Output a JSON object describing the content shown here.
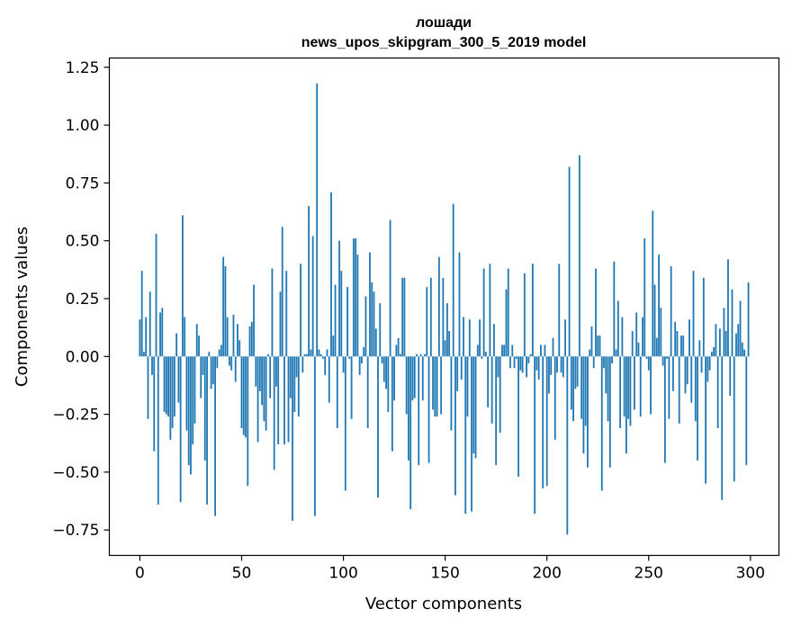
{
  "chart_data": {
    "type": "bar",
    "title": "лошади",
    "subtitle": "news_upos_skipgram_300_5_2019 model",
    "xlabel": "Vector components",
    "ylabel": "Components values",
    "xlim": [
      -15,
      314
    ],
    "ylim": [
      -0.86,
      1.29
    ],
    "xticks": [
      0,
      50,
      100,
      150,
      200,
      250,
      300
    ],
    "xtick_labels": [
      "0",
      "50",
      "100",
      "150",
      "200",
      "250",
      "300"
    ],
    "yticks": [
      -0.75,
      -0.5,
      -0.25,
      0.0,
      0.25,
      0.5,
      0.75,
      1.0,
      1.25
    ],
    "ytick_labels": [
      "−0.75",
      "−0.50",
      "−0.25",
      "0.00",
      "0.25",
      "0.50",
      "0.75",
      "1.00",
      "1.25"
    ],
    "bar_color": "#1f77b4",
    "grid": false,
    "legend": "none",
    "values": [
      0.16,
      0.37,
      0.02,
      0.17,
      -0.27,
      0.28,
      -0.08,
      -0.41,
      0.53,
      -0.64,
      0.19,
      0.21,
      -0.24,
      -0.25,
      -0.26,
      -0.36,
      -0.31,
      -0.26,
      0.1,
      -0.2,
      -0.63,
      0.61,
      0.17,
      -0.32,
      -0.47,
      -0.51,
      -0.38,
      -0.29,
      0.14,
      0.09,
      -0.18,
      -0.08,
      -0.45,
      -0.64,
      0.02,
      -0.14,
      -0.12,
      -0.69,
      -0.05,
      0.03,
      0.05,
      0.43,
      0.39,
      0.17,
      -0.04,
      -0.06,
      0.18,
      -0.11,
      0.14,
      0.07,
      -0.31,
      -0.34,
      -0.35,
      -0.56,
      0.13,
      0.15,
      0.31,
      -0.13,
      -0.37,
      -0.15,
      -0.21,
      -0.28,
      -0.32,
      0.01,
      -0.18,
      0.38,
      -0.49,
      -0.13,
      -0.38,
      0.28,
      0.56,
      -0.38,
      0.37,
      -0.37,
      -0.18,
      -0.71,
      -0.24,
      -0.09,
      -0.26,
      0.4,
      -0.07,
      0.01,
      0.01,
      0.65,
      0.03,
      0.52,
      -0.69,
      1.18,
      0.03,
      0.01,
      -0.01,
      -0.08,
      0.03,
      -0.2,
      0.71,
      0.09,
      0.31,
      -0.31,
      0.5,
      0.37,
      -0.07,
      -0.58,
      0.3,
      -0.01,
      -0.27,
      0.51,
      0.51,
      0.44,
      -0.08,
      -0.03,
      0.04,
      0.26,
      -0.31,
      0.45,
      0.32,
      0.28,
      0.12,
      -0.61,
      0.23,
      -0.03,
      -0.11,
      -0.14,
      -0.24,
      0.59,
      -0.41,
      -0.19,
      0.05,
      0.08,
      0.01,
      0.34,
      0.34,
      -0.25,
      -0.45,
      -0.66,
      -0.19,
      -0.18,
      0.01,
      -0.47,
      0.01,
      -0.19,
      0.01,
      0.3,
      -0.46,
      0.34,
      -0.23,
      -0.26,
      -0.26,
      0.43,
      -0.25,
      0.34,
      0.07,
      0.23,
      0.11,
      -0.32,
      0.66,
      -0.6,
      -0.15,
      0.45,
      -0.1,
      0.17,
      -0.68,
      -0.26,
      0.16,
      -0.67,
      -0.42,
      -0.44,
      0.05,
      0.16,
      -0.01,
      0.38,
      0.02,
      -0.22,
      0.4,
      -0.29,
      0.14,
      -0.47,
      -0.09,
      -0.33,
      0.05,
      0.05,
      0.29,
      0.38,
      -0.05,
      0.05,
      -0.05,
      -0.01,
      -0.52,
      -0.06,
      -0.07,
      0.36,
      -0.09,
      -0.03,
      0.01,
      0.4,
      -0.68,
      -0.06,
      -0.1,
      0.05,
      -0.57,
      0.05,
      -0.56,
      -0.16,
      -0.08,
      0.08,
      -0.36,
      -0.07,
      0.4,
      -0.07,
      -0.09,
      0.16,
      -0.77,
      0.82,
      -0.23,
      -0.28,
      -0.14,
      -0.13,
      0.87,
      -0.27,
      -0.42,
      -0.3,
      -0.48,
      0.03,
      0.13,
      -0.05,
      0.38,
      0.09,
      0.09,
      -0.58,
      -0.05,
      -0.16,
      -0.28,
      -0.48,
      -0.03,
      0.41,
      0.03,
      0.24,
      -0.31,
      0.17,
      -0.26,
      -0.42,
      -0.27,
      -0.3,
      0.11,
      -0.23,
      0.19,
      0.06,
      -0.26,
      0.17,
      0.51,
      -0.01,
      -0.06,
      -0.25,
      0.63,
      0.31,
      0.08,
      0.44,
      0.21,
      -0.04,
      -0.46,
      -0.01,
      -0.27,
      0.39,
      -0.15,
      0.15,
      0.11,
      -0.29,
      0.09,
      0.09,
      -0.16,
      -0.12,
      0.16,
      -0.2,
      0.37,
      -0.28,
      -0.45,
      0.07,
      -0.07,
      0.34,
      -0.55,
      -0.11,
      -0.06,
      0.02,
      0.04,
      0.14,
      -0.31,
      0.12,
      -0.62,
      0.21,
      0.11,
      0.42,
      -0.17,
      0.29,
      -0.54,
      0.1,
      0.14,
      0.24,
      0.06,
      0.03,
      -0.47,
      0.32
    ]
  }
}
